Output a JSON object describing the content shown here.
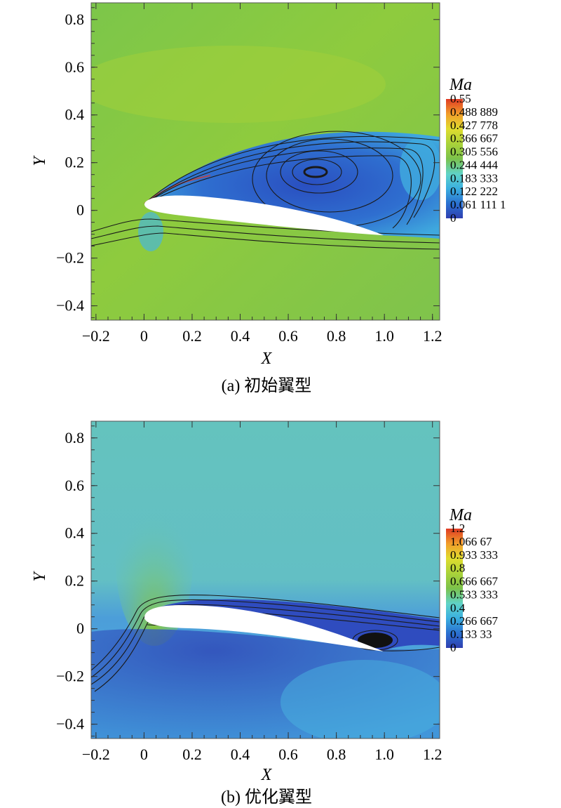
{
  "chart_data": [
    {
      "type": "heatmap",
      "caption": "(a) 初始翼型",
      "xlabel": "X",
      "ylabel": "Y",
      "xlim": [
        -0.22,
        1.23
      ],
      "ylim": [
        -0.46,
        0.87
      ],
      "xticks": [
        -0.2,
        0,
        0.2,
        0.4,
        0.6,
        0.8,
        1.0,
        1.2
      ],
      "xtick_labels": [
        "−0.2",
        "0",
        "0.2",
        "0.4",
        "0.6",
        "0.8",
        "1.0",
        "1.2"
      ],
      "yticks": [
        0.8,
        0.6,
        0.4,
        0.2,
        0,
        -0.2,
        -0.4
      ],
      "ytick_labels": [
        "0.8",
        "0.6",
        "0.4",
        "0.2",
        "0",
        "−0.2",
        "−0.4"
      ],
      "colorbar": {
        "title": "Ma",
        "range": [
          0,
          0.55
        ],
        "levels": [
          0.55,
          0.488889,
          0.427778,
          0.366667,
          0.305556,
          0.244444,
          0.183333,
          0.122222,
          0.0611111,
          0
        ],
        "labels": [
          "0.55",
          "0.488 889",
          "0.427 778",
          "0.366 667",
          "0.305 556",
          "0.244 444",
          "0.183 333",
          "0.122 222",
          "0.061 111 1",
          "0"
        ]
      },
      "field_color": "#7dc241",
      "separation_region": "large recirculation over upper surface, vortex core near (0.72, 0.16)"
    },
    {
      "type": "heatmap",
      "caption": "(b) 优化翼型",
      "xlabel": "X",
      "ylabel": "Y",
      "xlim": [
        -0.22,
        1.23
      ],
      "ylim": [
        -0.46,
        0.87
      ],
      "xticks": [
        -0.2,
        0,
        0.2,
        0.4,
        0.6,
        0.8,
        1.0,
        1.2
      ],
      "xtick_labels": [
        "−0.2",
        "0",
        "0.2",
        "0.4",
        "0.6",
        "0.8",
        "1.0",
        "1.2"
      ],
      "yticks": [
        0.8,
        0.6,
        0.4,
        0.2,
        0,
        -0.2,
        -0.4
      ],
      "ytick_labels": [
        "0.8",
        "0.6",
        "0.4",
        "0.2",
        "0",
        "−0.2",
        "−0.4"
      ],
      "colorbar": {
        "title": "Ma",
        "range": [
          0,
          1.2
        ],
        "levels": [
          1.2,
          1.06667,
          0.933333,
          0.8,
          0.666667,
          0.533333,
          0.4,
          0.266667,
          0.13333,
          0
        ],
        "labels": [
          "1.2",
          "1.066 67",
          "0.933 333",
          "0.8",
          "0.666 667",
          "0.533 333",
          "0.4",
          "0.266 667",
          "0.133 33",
          "0"
        ]
      },
      "field_color": "#62c2c0",
      "separation_region": "small vortex near trailing edge around (0.95, -0.05)"
    }
  ],
  "colors": {
    "scale": [
      "#2f3fb0",
      "#2a6fd0",
      "#3bb0e0",
      "#5fd3c8",
      "#7cc24a",
      "#a8d23a",
      "#e0dc2e",
      "#f2a02a",
      "#e03a24"
    ]
  }
}
